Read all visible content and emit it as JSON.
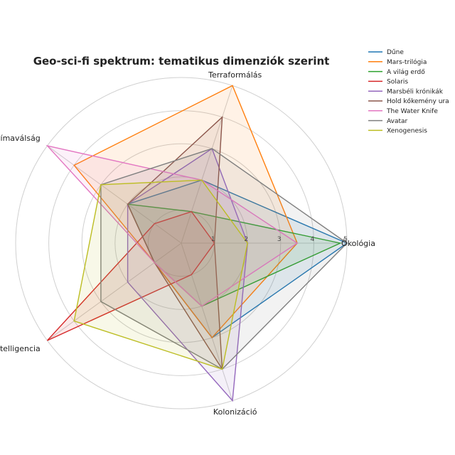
{
  "chart_data": {
    "type": "radar",
    "title": "Geo-sci-fi spektrum: tematikus dimenziók szerint",
    "axes": [
      "Ökológia",
      "Terraformálás",
      "Klímaválság",
      "Planetáris intelligencia",
      "Kolonizáció"
    ],
    "tick_labels": [
      "1",
      "2",
      "3",
      "4",
      "5"
    ],
    "rlim": [
      0,
      5
    ],
    "grid": true,
    "legend_position": "top-right",
    "series": [
      {
        "name": "Dűne",
        "color": "#1f77b4",
        "values": [
          5,
          2,
          2,
          1,
          3
        ]
      },
      {
        "name": "Mars-trilógia",
        "color": "#ff7f0e",
        "values": [
          3.5,
          5,
          4,
          1,
          3
        ]
      },
      {
        "name": "A világ erdő",
        "color": "#2ca02c",
        "values": [
          4.8,
          1,
          2,
          1,
          2
        ]
      },
      {
        "name": "Solaris",
        "color": "#d62728",
        "values": [
          1,
          1,
          1,
          5,
          1
        ]
      },
      {
        "name": "Marsbéli krónikák",
        "color": "#9467bd",
        "values": [
          2,
          3,
          2,
          2,
          5
        ]
      },
      {
        "name": "Hold kőkemény ura",
        "color": "#8c564b",
        "values": [
          1,
          4,
          2,
          1,
          4
        ]
      },
      {
        "name": "The Water Knife",
        "color": "#e377c2",
        "values": [
          3.5,
          2,
          5,
          1,
          2
        ]
      },
      {
        "name": "Avatar",
        "color": "#7f7f7f",
        "values": [
          5,
          3,
          3,
          3,
          4
        ]
      },
      {
        "name": "Xenogenesis",
        "color": "#bcbd22",
        "values": [
          2,
          2,
          3,
          4,
          4
        ]
      }
    ]
  }
}
